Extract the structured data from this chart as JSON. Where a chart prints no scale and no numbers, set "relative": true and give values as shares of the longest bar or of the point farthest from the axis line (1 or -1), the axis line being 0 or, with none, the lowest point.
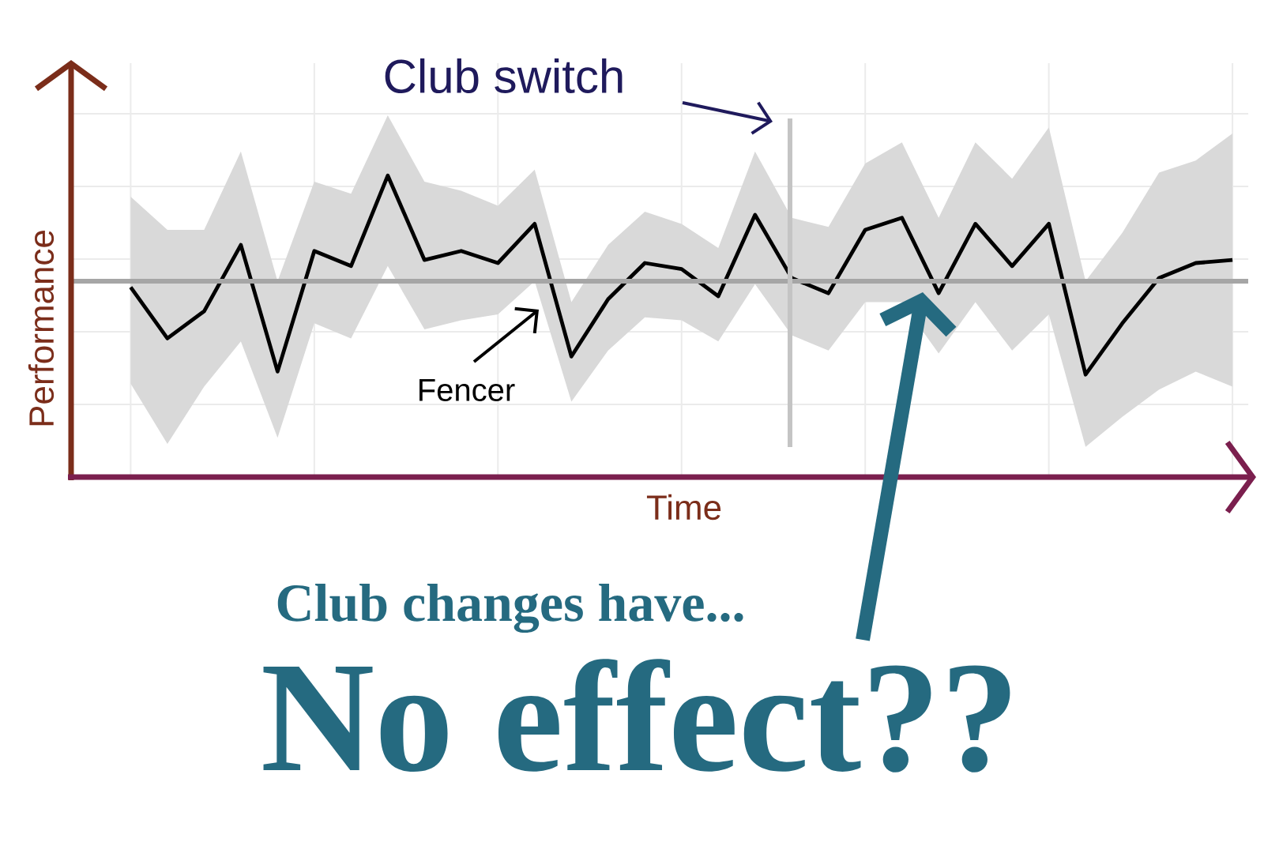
{
  "chart_data": {
    "type": "line",
    "relative": true,
    "xlabel": "Time",
    "ylabel": "Performance",
    "categories": [
      null,
      null,
      null,
      null,
      null,
      null,
      null,
      null,
      null,
      null,
      null,
      null,
      null,
      null,
      null,
      null,
      null,
      null,
      null,
      null,
      null,
      null,
      null,
      null,
      null,
      null,
      null,
      null,
      null,
      null,
      null
    ],
    "series": [
      {
        "color": "#000000",
        "values": [
          0.63,
          0.46,
          0.55,
          0.77,
          0.35,
          0.75,
          0.7,
          1,
          0.72,
          0.75,
          0.71,
          0.84,
          0.4,
          0.59,
          0.71,
          0.69,
          0.6,
          0.87,
          0.66,
          0.61,
          0.82,
          0.86,
          0.61,
          0.84,
          0.7,
          0.84,
          0.34,
          0.51,
          0.66,
          0.71,
          0.72
        ],
        "upper": [
          0.93,
          0.82,
          0.82,
          1.08,
          0.65,
          0.98,
          0.94,
          1.2,
          0.98,
          0.95,
          0.9,
          1.02,
          0.58,
          0.77,
          0.88,
          0.84,
          0.76,
          1.08,
          0.86,
          0.83,
          1.04,
          1.11,
          0.86,
          1.11,
          0.99,
          1.16,
          0.65,
          0.81,
          1.01,
          1.05,
          1.14
        ],
        "lower": [
          0.31,
          0.11,
          0.3,
          0.45,
          0.13,
          0.51,
          0.46,
          0.7,
          0.49,
          0.52,
          0.54,
          0.65,
          0.25,
          0.42,
          0.53,
          0.52,
          0.45,
          0.64,
          0.47,
          0.42,
          0.58,
          0.58,
          0.41,
          0.58,
          0.42,
          0.54,
          0.1,
          0.2,
          0.29,
          0.35,
          0.3
        ]
      }
    ],
    "ref_lines": [
      {
        "axis": "y",
        "value": 0.65,
        "color": "#a6a6a6"
      }
    ],
    "annotations": [
      "Club switch",
      "Fencer",
      "Club changes have...",
      "No effect??"
    ],
    "grid": true,
    "tick_labels": false
  }
}
